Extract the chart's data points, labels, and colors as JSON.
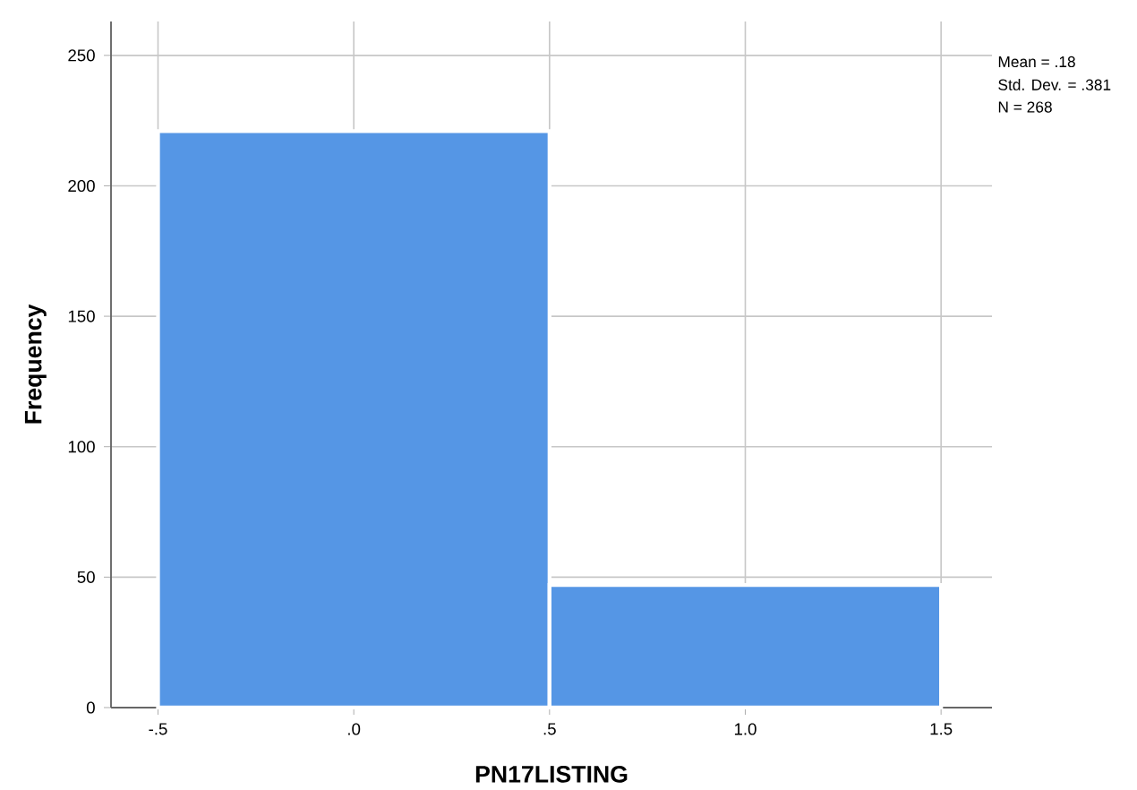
{
  "chart_data": {
    "type": "histogram",
    "xlabel": "PN17LISTING",
    "ylabel": "Frequency",
    "bins": [
      -0.5,
      0.5,
      1.5
    ],
    "values": [
      221,
      47
    ],
    "color": "#5596e5",
    "xlim": [
      -0.62,
      1.63
    ],
    "ylim": [
      0,
      263
    ],
    "xticks": [
      {
        "value": -0.5,
        "label": "-.5"
      },
      {
        "value": 0,
        "label": ".0"
      },
      {
        "value": 0.5,
        "label": ".5"
      },
      {
        "value": 1,
        "label": "1.0"
      },
      {
        "value": 1.5,
        "label": "1.5"
      }
    ],
    "yticks": [
      0,
      50,
      100,
      150,
      200,
      250
    ],
    "grid": true,
    "annotations": [
      "Mean = .18",
      "Std. Dev. = .381",
      "N = 268"
    ]
  }
}
